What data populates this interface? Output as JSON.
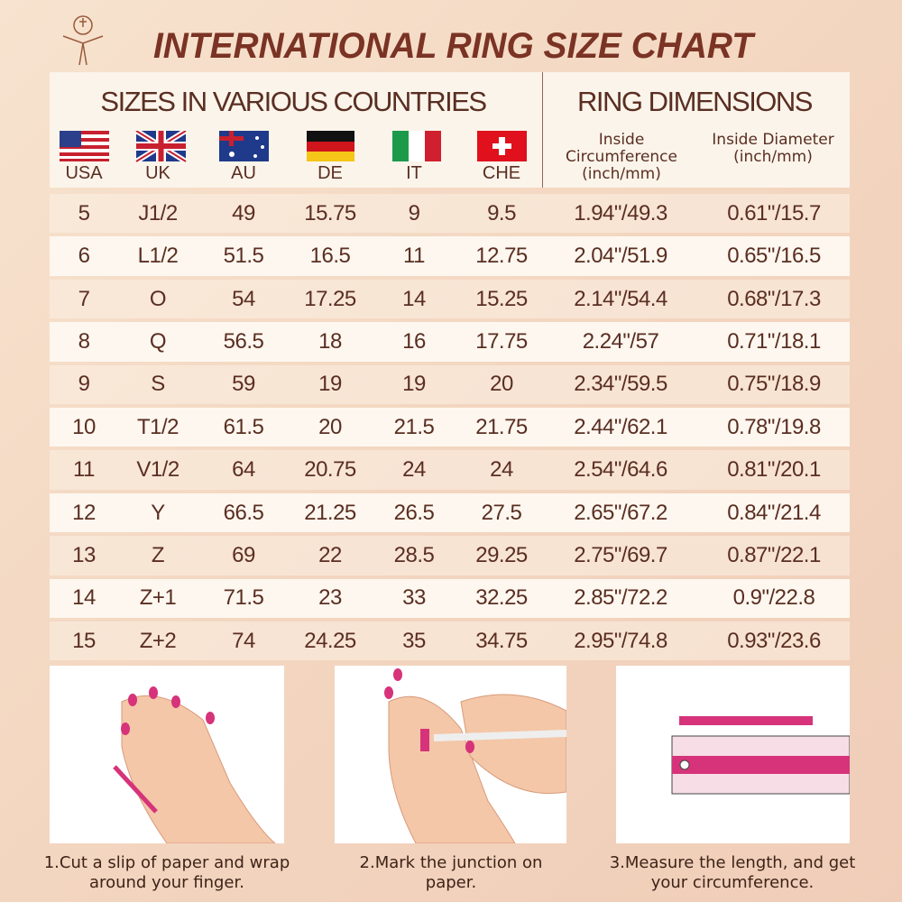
{
  "title": "INTERNATIONAL RING SIZE CHART",
  "table": {
    "group_headers": [
      "SIZES IN VARIOUS COUNTRIES",
      "RING DIMENSIONS"
    ],
    "columns": [
      "USA",
      "UK",
      "AU",
      "DE",
      "IT",
      "CHE",
      "Inside Circumference (inch/mm)",
      "Inside Diameter (inch/mm)"
    ],
    "rows": [
      [
        "5",
        "J1/2",
        "49",
        "15.75",
        "9",
        "9.5",
        "1.94\"/49.3",
        "0.61\"/15.7"
      ],
      [
        "6",
        "L1/2",
        "51.5",
        "16.5",
        "11",
        "12.75",
        "2.04\"/51.9",
        "0.65\"/16.5"
      ],
      [
        "7",
        "O",
        "54",
        "17.25",
        "14",
        "15.25",
        "2.14\"/54.4",
        "0.68\"/17.3"
      ],
      [
        "8",
        "Q",
        "56.5",
        "18",
        "16",
        "17.75",
        "2.24\"/57",
        "0.71\"/18.1"
      ],
      [
        "9",
        "S",
        "59",
        "19",
        "19",
        "20",
        "2.34\"/59.5",
        "0.75\"/18.9"
      ],
      [
        "10",
        "T1/2",
        "61.5",
        "20",
        "21.5",
        "21.75",
        "2.44\"/62.1",
        "0.78\"/19.8"
      ],
      [
        "11",
        "V1/2",
        "64",
        "20.75",
        "24",
        "24",
        "2.54\"/64.6",
        "0.81\"/20.1"
      ],
      [
        "12",
        "Y",
        "66.5",
        "21.25",
        "26.5",
        "27.5",
        "2.65\"/67.2",
        "0.84\"/21.4"
      ],
      [
        "13",
        "Z",
        "69",
        "22",
        "28.5",
        "29.25",
        "2.75\"/69.7",
        "0.87\"/22.1"
      ],
      [
        "14",
        "Z+1",
        "71.5",
        "23",
        "33",
        "32.25",
        "2.85\"/72.2",
        "0.9\"/22.8"
      ],
      [
        "15",
        "Z+2",
        "74",
        "24.25",
        "35",
        "34.75",
        "2.95\"/74.8",
        "0.93\"/23.6"
      ]
    ]
  },
  "steps": [
    "1.Cut a slip of paper and wrap around your finger.",
    "2.Mark the junction on paper.",
    "3.Measure the length, and get your circumference."
  ]
}
